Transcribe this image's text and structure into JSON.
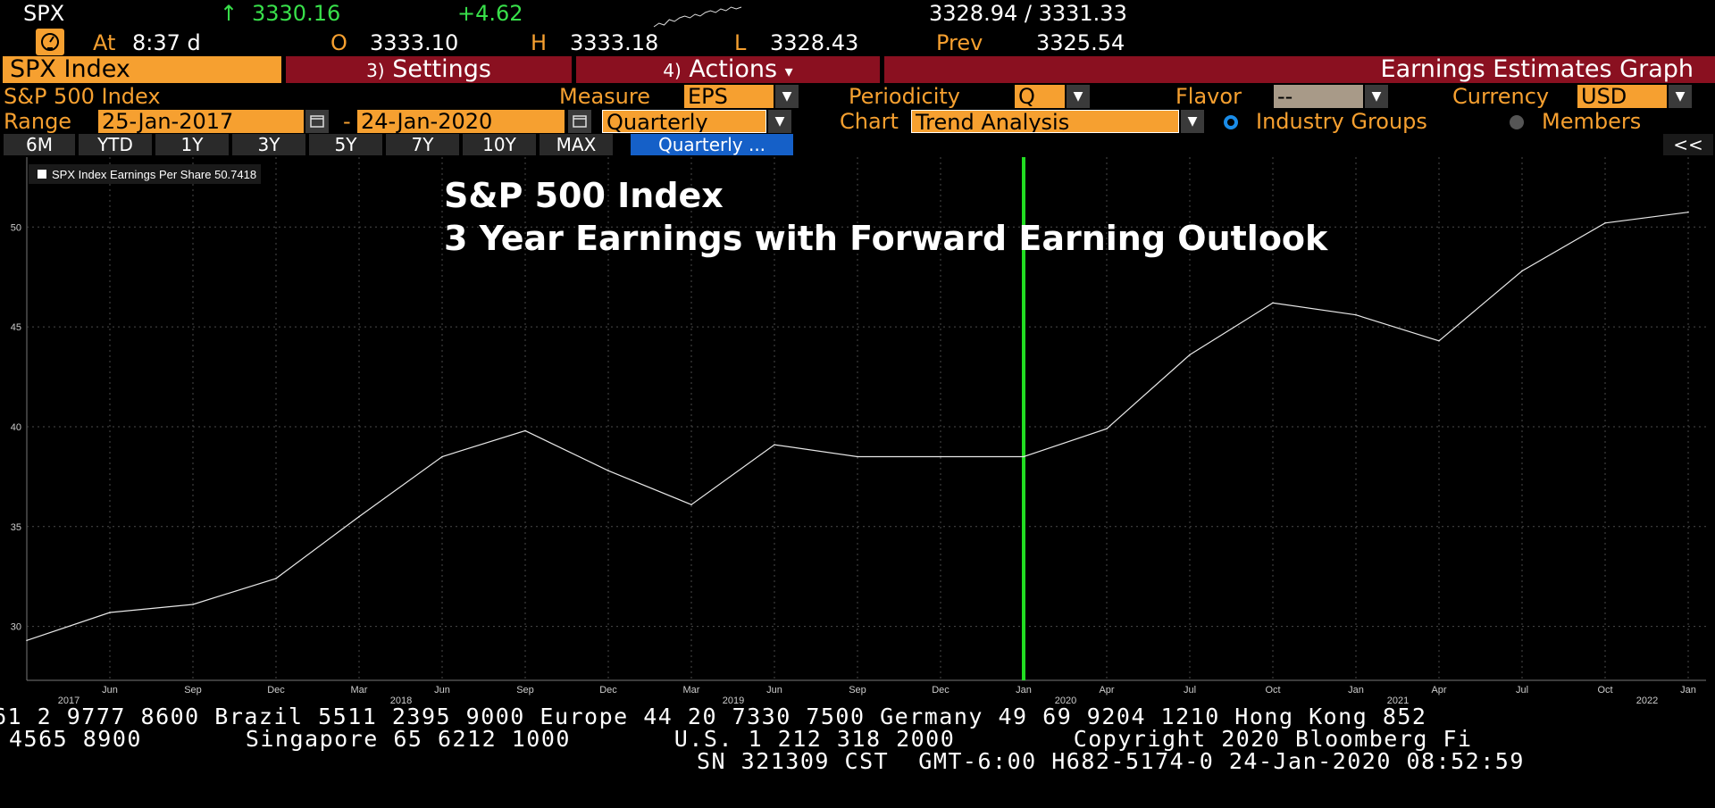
{
  "quote": {
    "ticker": "SPX",
    "arrow": "↑",
    "last": "3330.16",
    "change": "+4.62",
    "bid_ask": "3328.94 / 3331.33",
    "time_label": "At",
    "time": "8:37 d",
    "open_label": "O",
    "open": "3333.10",
    "high_label": "H",
    "high": "3333.18",
    "low_label": "L",
    "low": "3328.43",
    "prev_label": "Prev",
    "prev": "3325.54",
    "sparkline": [
      12,
      10,
      11,
      8,
      9,
      7,
      6,
      7,
      5,
      6,
      4,
      3,
      4,
      2,
      3,
      1,
      2,
      1
    ]
  },
  "toolbar": {
    "security": "SPX Index",
    "settings_num": "3)",
    "settings": "Settings",
    "actions_num": "4)",
    "actions": "Actions",
    "actions_arrow": "▾",
    "function_title": "Earnings Estimates Graph"
  },
  "params": {
    "name": "S&P 500 Index",
    "measure_label": "Measure",
    "measure": "EPS",
    "periodicity_label": "Periodicity",
    "periodicity": "Q",
    "flavor_label": "Flavor",
    "flavor": "--",
    "currency_label": "Currency",
    "currency": "USD",
    "range_label": "Range",
    "start_date": "25-Jan-2017",
    "dash": "-",
    "end_date": "24-Jan-2020",
    "frequency": "Quarterly",
    "chart_label": "Chart",
    "chart": "Trend Analysis",
    "industry_groups": "Industry Groups",
    "members": "Members"
  },
  "ranges": {
    "buttons": [
      "6M",
      "YTD",
      "1Y",
      "3Y",
      "5Y",
      "7Y",
      "10Y",
      "MAX"
    ],
    "selected": "Quarterly ...",
    "collapse": "<<"
  },
  "chart_data": {
    "type": "line",
    "title": "S&P 500 Index\n3 Year Earnings with Forward Earning Outlook",
    "title_lines": [
      "S&P 500 Index",
      "3 Year Earnings with Forward Earning Outlook"
    ],
    "legend": "SPX Index Earnings Per Share 50.7418",
    "legend_placement": "top-left",
    "ylim": [
      27.3,
      53.5
    ],
    "yticks": [
      30,
      35,
      40,
      45,
      50
    ],
    "grid": true,
    "xticks": [
      {
        "label": "Jun",
        "year": "2017"
      },
      {
        "label": "Sep",
        "year": ""
      },
      {
        "label": "Dec",
        "year": ""
      },
      {
        "label": "Mar",
        "year": ""
      },
      {
        "label": "Jun",
        "year": "2018"
      },
      {
        "label": "Sep",
        "year": ""
      },
      {
        "label": "Dec",
        "year": ""
      },
      {
        "label": "Mar",
        "year": ""
      },
      {
        "label": "Jun",
        "year": "2019"
      },
      {
        "label": "Sep",
        "year": ""
      },
      {
        "label": "Dec",
        "year": ""
      },
      {
        "label": "Jan",
        "year": ""
      },
      {
        "label": "Apr",
        "year": "2020"
      },
      {
        "label": "Jul",
        "year": ""
      },
      {
        "label": "Oct",
        "year": ""
      },
      {
        "label": "Jan",
        "year": ""
      },
      {
        "label": "Apr",
        "year": "2021"
      },
      {
        "label": "Jul",
        "year": ""
      },
      {
        "label": "Oct",
        "year": ""
      },
      {
        "label": "Jan",
        "year": "2022"
      }
    ],
    "series": [
      {
        "name": "SPX Index Earnings Per Share",
        "color": "#ffffff",
        "x": [
          "Mar 2017",
          "Jun 2017",
          "Sep 2017",
          "Dec 2017",
          "Mar 2018",
          "Jun 2018",
          "Sep 2018",
          "Dec 2018",
          "Mar 2019",
          "Jun 2019",
          "Sep 2019",
          "Dec 2019",
          "Jan 2020",
          "Apr 2020",
          "Jul 2020",
          "Oct 2020",
          "Jan 2021",
          "Apr 2021",
          "Jul 2021",
          "Oct 2021",
          "Jan 2022"
        ],
        "values": [
          29.3,
          30.7,
          31.1,
          32.4,
          35.5,
          38.5,
          39.8,
          37.8,
          36.1,
          39.1,
          38.5,
          38.5,
          38.5,
          39.9,
          43.6,
          46.2,
          45.6,
          44.3,
          47.8,
          50.2,
          50.74
        ]
      }
    ],
    "marker": {
      "label": "Jan 2020",
      "color": "#22dd22"
    }
  },
  "footer": {
    "line1": "61 2 9777 8600 Brazil 5511 2395 9000 Europe 44 20 7330 7500 Germany 49 69 9204 1210 Hong Kong 852",
    "line2": "4565 8900       Singapore 65 6212 1000       U.S. 1 212 318 2000        Copyright 2020 Bloomberg Fi",
    "line3": "SN 321309 CST  GMT-6:00 H682-5174-0 24-Jan-2020 08:52:59"
  }
}
